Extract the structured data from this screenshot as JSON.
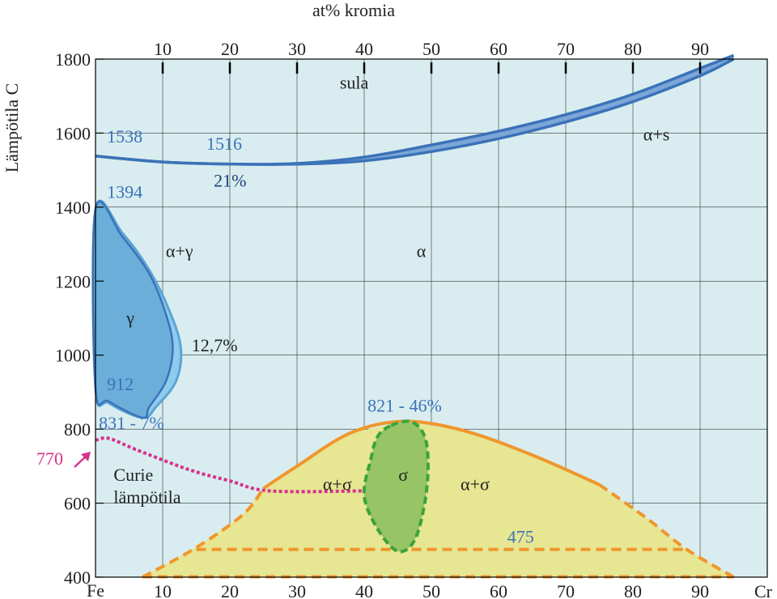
{
  "chart_data": {
    "type": "phase-diagram",
    "title": "",
    "top_axis_label": "at% kromia",
    "ylabel": "Lämpötila C",
    "bottom_left_label": "Fe",
    "bottom_right_label": "Cr",
    "x_range": [
      0,
      100
    ],
    "y_range": [
      400,
      1800
    ],
    "x_ticks_bottom": [
      10,
      20,
      30,
      40,
      50,
      60,
      70,
      80,
      90
    ],
    "x_ticks_top": [
      10,
      20,
      30,
      40,
      50,
      60,
      70,
      80,
      90
    ],
    "y_ticks": [
      400,
      600,
      800,
      1000,
      1200,
      1400,
      1600,
      1800
    ],
    "grid": true,
    "colors": {
      "background": "#d9edf0",
      "liquidus": "#3b72b8",
      "gamma_loop": "#5aa5d6",
      "sigma_field": "#e6e693",
      "sigma_boundary": "#f0962d",
      "sigma_phase": "#97c465",
      "sigma_phase_border": "#3aa33a",
      "curie_line": "#d6338c",
      "annotation_blue": "#3b72b8"
    },
    "phase_labels": {
      "melt": "sula",
      "alpha_plus_s": "α+s",
      "alpha_plus_gamma": "α+γ",
      "alpha": "α",
      "gamma": "γ",
      "alpha_plus_sigma_left": "α+σ",
      "sigma": "σ",
      "alpha_plus_sigma_right": "α+σ",
      "curie_1": "Curie",
      "curie_2": "lämpötila"
    },
    "annotations": {
      "fe_melting": "1538",
      "min_melting": "1516",
      "min_composition": "21%",
      "fe_gamma_top": "1394",
      "gamma_loop_limit": "12,7%",
      "fe_gamma_bottom": "912",
      "gamma_loop_min": "831 - 7%",
      "curie_point": "770",
      "sigma_max": "821 - 46%",
      "sigma_low": "475"
    },
    "liquidus": [
      [
        0,
        1538
      ],
      [
        10,
        1522
      ],
      [
        21,
        1516
      ],
      [
        30,
        1518
      ],
      [
        40,
        1535
      ],
      [
        50,
        1568
      ],
      [
        60,
        1605
      ],
      [
        70,
        1650
      ],
      [
        80,
        1705
      ],
      [
        90,
        1775
      ],
      [
        95,
        1810
      ]
    ],
    "solidus": [
      [
        0,
        1538
      ],
      [
        10,
        1522
      ],
      [
        21,
        1516
      ],
      [
        30,
        1516
      ],
      [
        40,
        1525
      ],
      [
        50,
        1550
      ],
      [
        60,
        1585
      ],
      [
        70,
        1630
      ],
      [
        80,
        1685
      ],
      [
        90,
        1755
      ],
      [
        95,
        1800
      ]
    ],
    "gamma_loop_outer": [
      [
        0,
        1394
      ],
      [
        4,
        1330
      ],
      [
        8,
        1230
      ],
      [
        11,
        1120
      ],
      [
        12.7,
        1020
      ],
      [
        12,
        930
      ],
      [
        9,
        860
      ],
      [
        7,
        831
      ],
      [
        2,
        870
      ],
      [
        0,
        912
      ]
    ],
    "gamma_loop_inner": [
      [
        0,
        1394
      ],
      [
        4,
        1320
      ],
      [
        8,
        1220
      ],
      [
        10.5,
        1110
      ],
      [
        11.5,
        1020
      ],
      [
        10.5,
        930
      ],
      [
        8,
        860
      ],
      [
        7,
        831
      ],
      [
        2,
        875
      ],
      [
        0,
        912
      ]
    ],
    "sigma_field_boundary": [
      [
        7,
        400
      ],
      [
        15,
        480
      ],
      [
        22,
        570
      ],
      [
        25,
        640
      ],
      [
        30,
        700
      ],
      [
        38,
        790
      ],
      [
        46,
        821
      ],
      [
        55,
        795
      ],
      [
        65,
        730
      ],
      [
        75,
        650
      ],
      [
        82,
        560
      ],
      [
        88,
        475
      ],
      [
        95,
        400
      ]
    ],
    "sigma_phase_boundary": [
      [
        44,
        810
      ],
      [
        47,
        820
      ],
      [
        49,
        780
      ],
      [
        49.5,
        700
      ],
      [
        49,
        600
      ],
      [
        47.5,
        500
      ],
      [
        45,
        470
      ],
      [
        42,
        530
      ],
      [
        40,
        620
      ],
      [
        41,
        720
      ],
      [
        42,
        780
      ],
      [
        44,
        810
      ]
    ],
    "curie_line": [
      [
        0,
        770
      ],
      [
        2,
        775
      ],
      [
        6,
        745
      ],
      [
        14,
        690
      ],
      [
        20,
        660
      ],
      [
        26,
        633
      ],
      [
        40,
        633
      ]
    ],
    "eutectoid_line_y": 475
  }
}
